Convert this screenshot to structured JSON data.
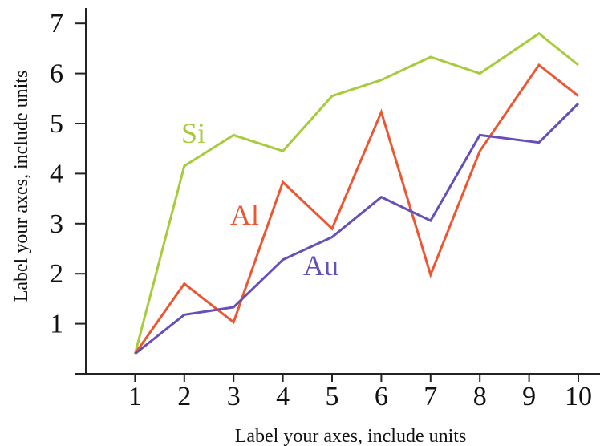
{
  "chart_data": {
    "type": "line",
    "xlabel": "Label your axes, include units",
    "ylabel": "Label your axes, include units",
    "x": [
      1,
      2,
      3,
      4,
      5,
      6,
      7,
      8,
      9,
      10
    ],
    "x_ticks": [
      "1",
      "2",
      "3",
      "4",
      "5",
      "6",
      "7",
      "8",
      "9",
      "10"
    ],
    "y_ticks": [
      "1",
      "2",
      "3",
      "4",
      "5",
      "6",
      "7"
    ],
    "xlim": [
      0,
      10.5
    ],
    "ylim": [
      0,
      7.3
    ],
    "grid": false,
    "series": [
      {
        "name": "Si",
        "color": "#a6cc3b",
        "points": [
          [
            1,
            0.4
          ],
          [
            2,
            4.15
          ],
          [
            3,
            4.77
          ],
          [
            4,
            4.45
          ],
          [
            5,
            5.55
          ],
          [
            6,
            5.87
          ],
          [
            7,
            6.33
          ],
          [
            8,
            6.0
          ],
          [
            9.2,
            6.8
          ],
          [
            10,
            6.17
          ]
        ]
      },
      {
        "name": "Al",
        "color": "#ec5631",
        "points": [
          [
            1,
            0.4
          ],
          [
            2,
            1.8
          ],
          [
            3,
            1.03
          ],
          [
            4,
            3.83
          ],
          [
            5,
            2.9
          ],
          [
            6,
            5.23
          ],
          [
            7,
            1.98
          ],
          [
            8,
            4.45
          ],
          [
            9.2,
            6.17
          ],
          [
            10,
            5.55
          ]
        ]
      },
      {
        "name": "Au",
        "color": "#6650b8",
        "points": [
          [
            1,
            0.4
          ],
          [
            2,
            1.18
          ],
          [
            3,
            1.33
          ],
          [
            4,
            2.28
          ],
          [
            5,
            2.73
          ],
          [
            6,
            3.53
          ],
          [
            7,
            3.06
          ],
          [
            8,
            4.77
          ],
          [
            9.2,
            4.62
          ],
          [
            10,
            5.4
          ]
        ]
      }
    ]
  }
}
